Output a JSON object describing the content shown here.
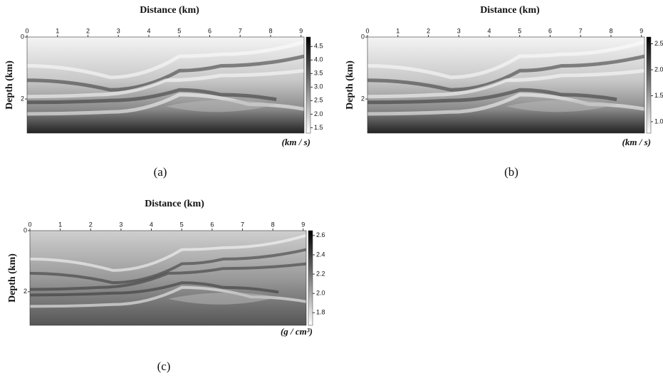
{
  "panels": [
    {
      "title": "Distance (km)",
      "ylabel": "Depth (km)",
      "xlim": [
        0,
        9.1
      ],
      "xticks": [
        0,
        1,
        2,
        3,
        4,
        5,
        6,
        7,
        8,
        9
      ],
      "ylim": [
        0,
        3.1
      ],
      "yticks": [
        0,
        2
      ],
      "colorbar": {
        "lim": [
          1.3,
          4.85
        ],
        "ticks": [
          4.5,
          {
            "value": 4,
            "label": "4.0"
          },
          3.5,
          {
            "value": 3,
            "label": "3.0"
          },
          2.5,
          {
            "value": 2,
            "label": "2.0"
          },
          1.5
        ],
        "unit": "(km / s)"
      },
      "caption": "(a)"
    },
    {
      "title": "Distance (km)",
      "ylabel": "Depth (km)",
      "xlim": [
        0,
        9.1
      ],
      "xticks": [
        0,
        1,
        2,
        3,
        4,
        5,
        6,
        7,
        8,
        9
      ],
      "ylim": [
        0,
        3.1
      ],
      "yticks": [
        0,
        2
      ],
      "colorbar": {
        "lim": [
          0.78,
          2.63
        ],
        "ticks": [
          2.5,
          {
            "value": 2,
            "label": "2.0"
          },
          1.5,
          {
            "value": 1,
            "label": "1.0"
          }
        ],
        "unit": "(km / s)"
      },
      "caption": "(b)"
    },
    {
      "title": "Distance (km)",
      "ylabel": "Depth (km)",
      "xlim": [
        0,
        9.1
      ],
      "xticks": [
        0,
        1,
        2,
        3,
        4,
        5,
        6,
        7,
        8,
        9
      ],
      "ylim": [
        0,
        3.1
      ],
      "yticks": [
        0,
        2
      ],
      "colorbar": {
        "lim": [
          1.67,
          2.65
        ],
        "ticks": [
          2.6,
          2.4,
          2.2,
          {
            "value": 2,
            "label": "2.0"
          },
          1.8
        ],
        "unit": "(g / cm³)"
      },
      "caption": "(c)"
    }
  ]
}
